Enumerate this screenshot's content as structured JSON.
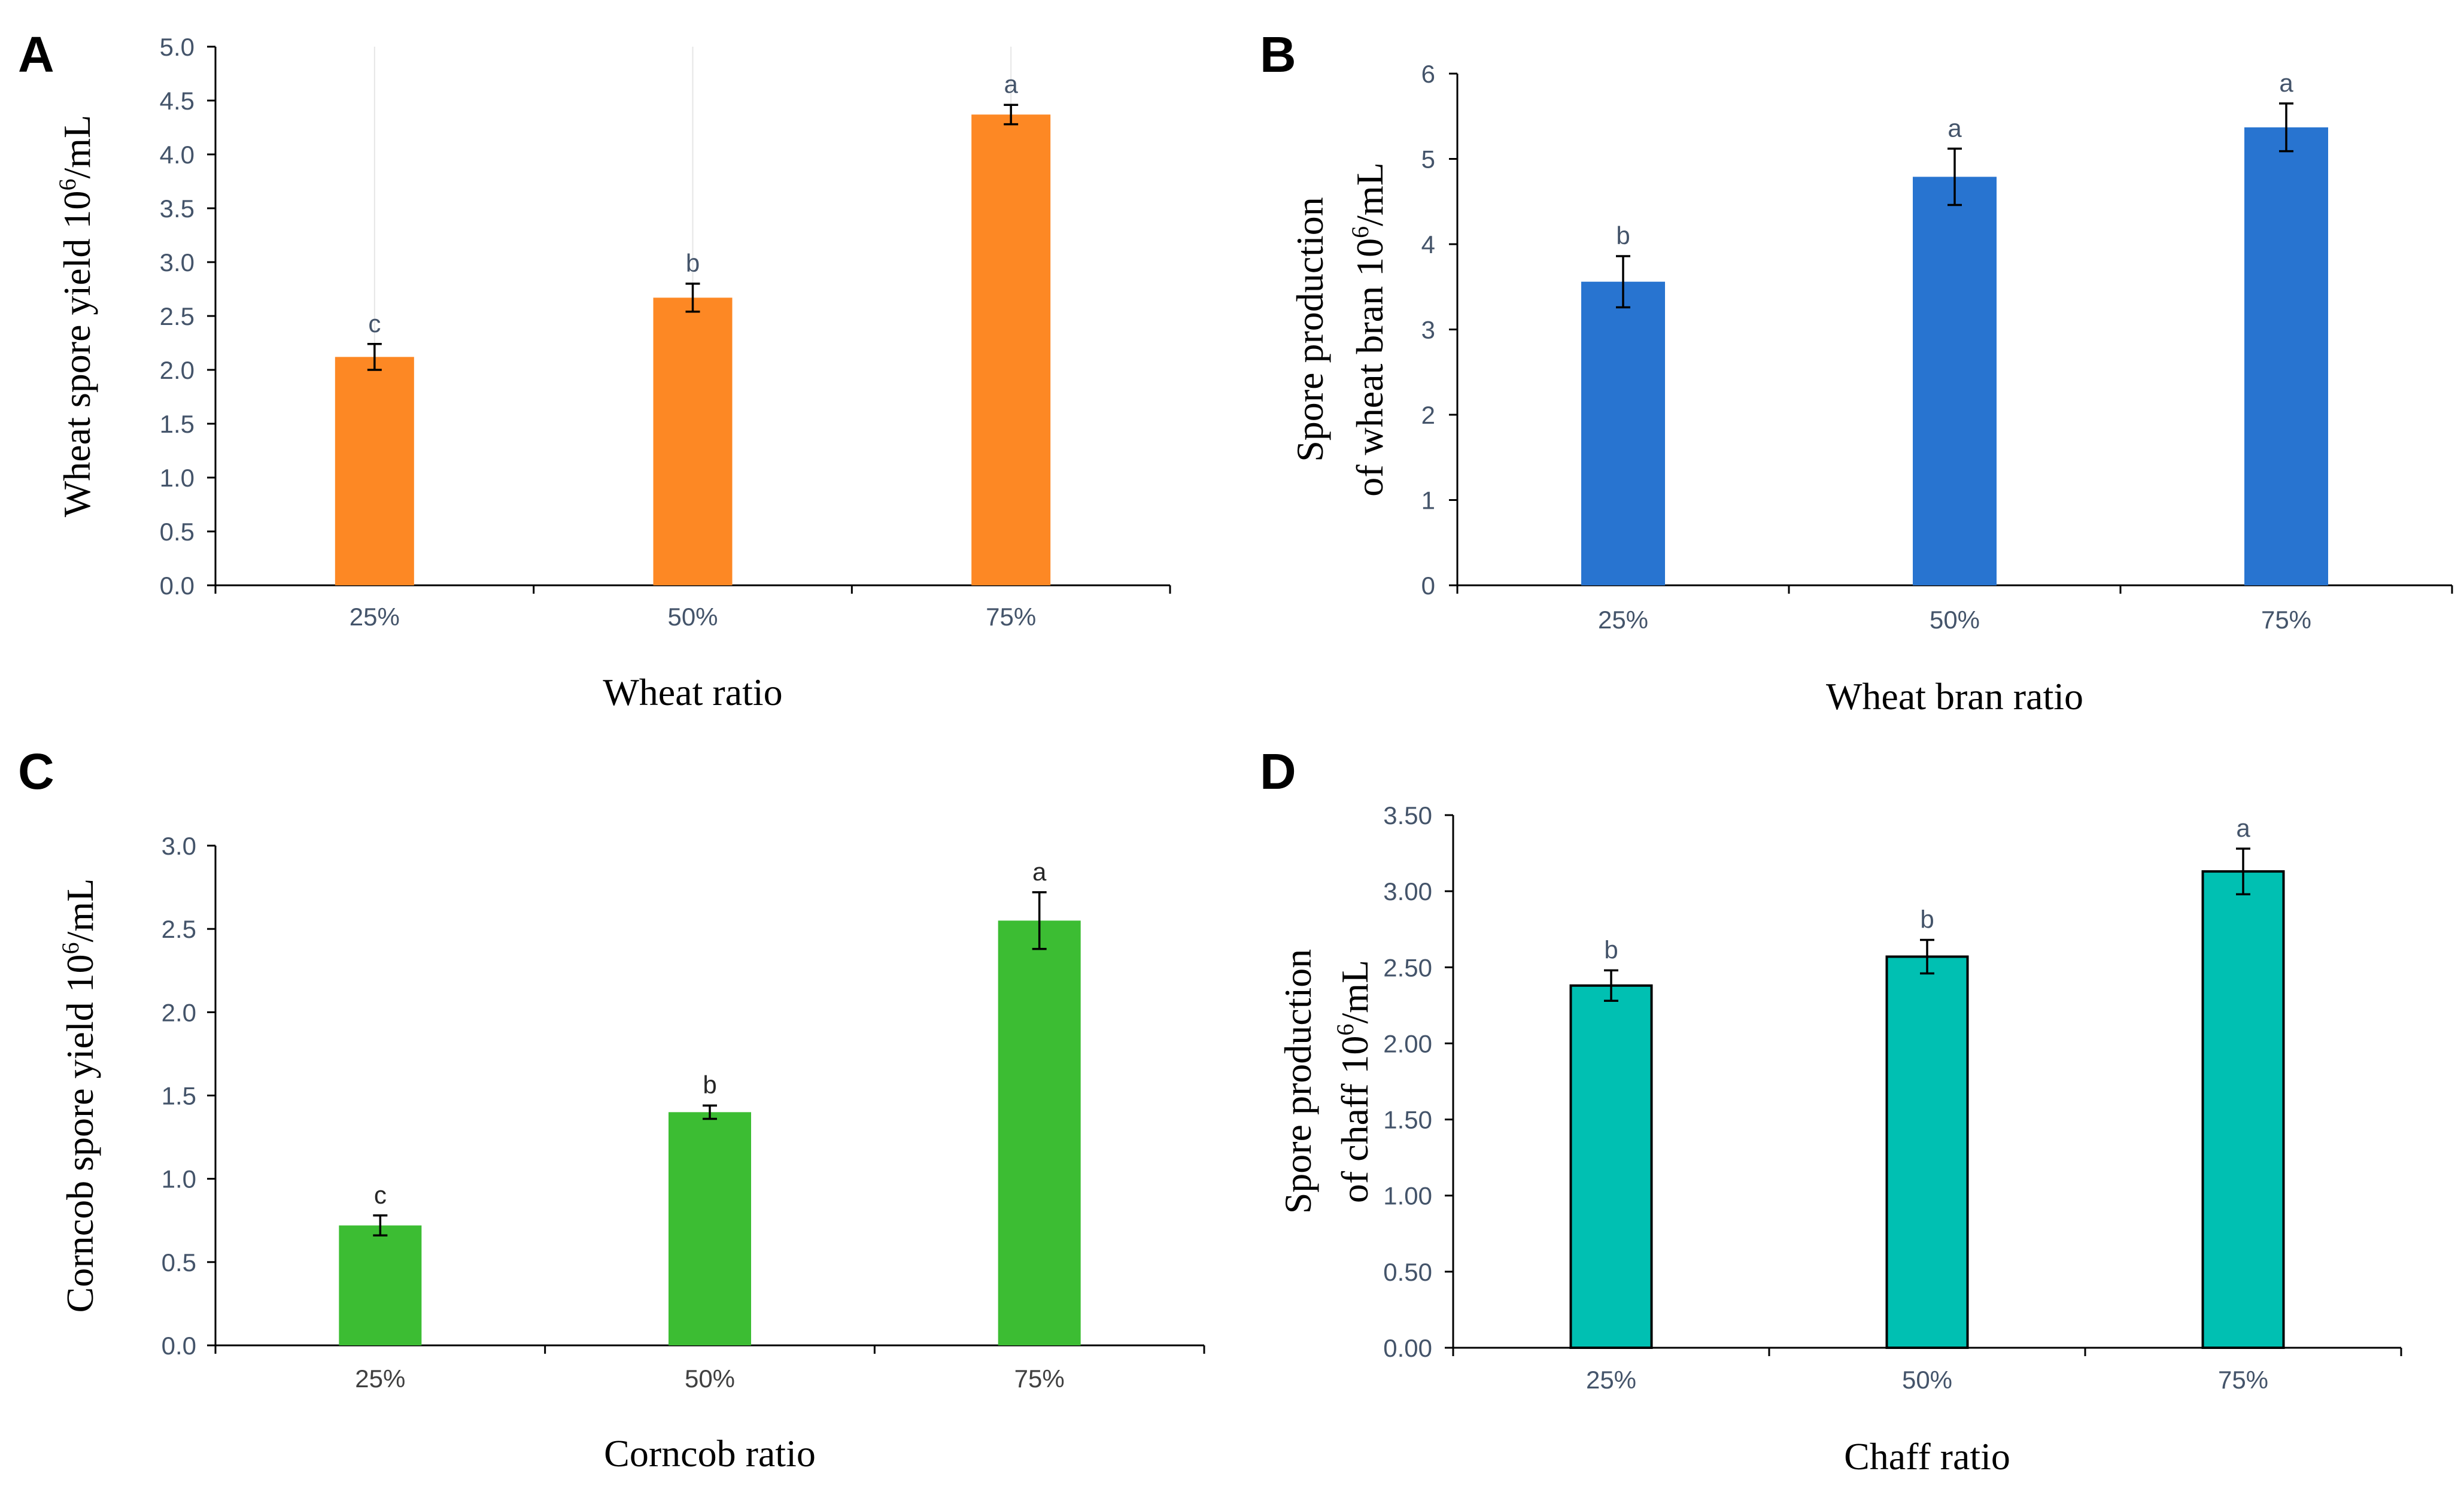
{
  "figure": {
    "panels": [
      {
        "letter": "A",
        "chart_data": {
          "type": "bar",
          "categories": [
            "25%",
            "50%",
            "75%"
          ],
          "values": [
            2.12,
            2.67,
            4.37
          ],
          "errors": [
            0.12,
            0.13,
            0.09
          ],
          "significance": [
            "c",
            "b",
            "a"
          ],
          "xlabel": "Wheat ratio",
          "ylabel_main": "Wheat spore yield 10",
          "ylabel_sup": "6",
          "ylabel_suffix": "/mL",
          "ylabel2_main": "",
          "ylabel2_sup": "",
          "ylabel2_suffix": "",
          "ylim": [
            0,
            5
          ],
          "yticks": [
            "0.0",
            "0.5",
            "1.0",
            "1.5",
            "2.0",
            "2.5",
            "3.0",
            "3.5",
            "4.0",
            "4.5",
            "5.0"
          ],
          "color": "#fd8824",
          "edge": "none",
          "faint_gridlines": true
        }
      },
      {
        "letter": "B",
        "chart_data": {
          "type": "bar",
          "categories": [
            "25%",
            "50%",
            "75%"
          ],
          "values": [
            3.56,
            4.79,
            5.37
          ],
          "errors": [
            0.3,
            0.33,
            0.28
          ],
          "significance": [
            "b",
            "a",
            "a"
          ],
          "xlabel": "Wheat bran ratio",
          "ylabel_main": "Spore production",
          "ylabel_sup": "",
          "ylabel_suffix": "",
          "ylabel2_main": "of wheat bran 10",
          "ylabel2_sup": "6",
          "ylabel2_suffix": "/mL",
          "ylim": [
            0,
            6
          ],
          "yticks": [
            "0",
            "1",
            "2",
            "3",
            "4",
            "5",
            "6"
          ],
          "color": "#2874d0",
          "edge": "none",
          "faint_gridlines": false
        }
      },
      {
        "letter": "C",
        "chart_data": {
          "type": "bar",
          "categories": [
            "25%",
            "50%",
            "75%"
          ],
          "values": [
            0.72,
            1.4,
            2.55
          ],
          "errors": [
            0.06,
            0.04,
            0.17
          ],
          "significance": [
            "c",
            "b",
            "a"
          ],
          "xlabel": "Corncob ratio",
          "ylabel_main": "Corncob spore yield 10",
          "ylabel_sup": "6",
          "ylabel_suffix": "/mL",
          "ylabel2_main": "",
          "ylabel2_sup": "",
          "ylabel2_suffix": "",
          "ylim": [
            0,
            3
          ],
          "yticks": [
            "0.0",
            "0.5",
            "1.0",
            "1.5",
            "2.0",
            "2.5",
            "3.0"
          ],
          "color": "#3cbd33",
          "edge": "none",
          "faint_gridlines": false
        }
      },
      {
        "letter": "D",
        "chart_data": {
          "type": "bar",
          "categories": [
            "25%",
            "50%",
            "75%"
          ],
          "values": [
            2.38,
            2.57,
            3.13
          ],
          "errors": [
            0.1,
            0.11,
            0.15
          ],
          "significance": [
            "b",
            "b",
            "a"
          ],
          "xlabel": "Chaff ratio",
          "ylabel_main": "Spore production",
          "ylabel_sup": "",
          "ylabel_suffix": "",
          "ylabel2_main": "of chaff 10",
          "ylabel2_sup": "6",
          "ylabel2_suffix": "/mL",
          "ylim": [
            0,
            3.5
          ],
          "yticks": [
            "0.00",
            "0.50",
            "1.00",
            "1.50",
            "2.00",
            "2.50",
            "3.00",
            "3.50"
          ],
          "color": "#00c0b2",
          "edge": "#000000",
          "faint_gridlines": false
        }
      }
    ]
  }
}
